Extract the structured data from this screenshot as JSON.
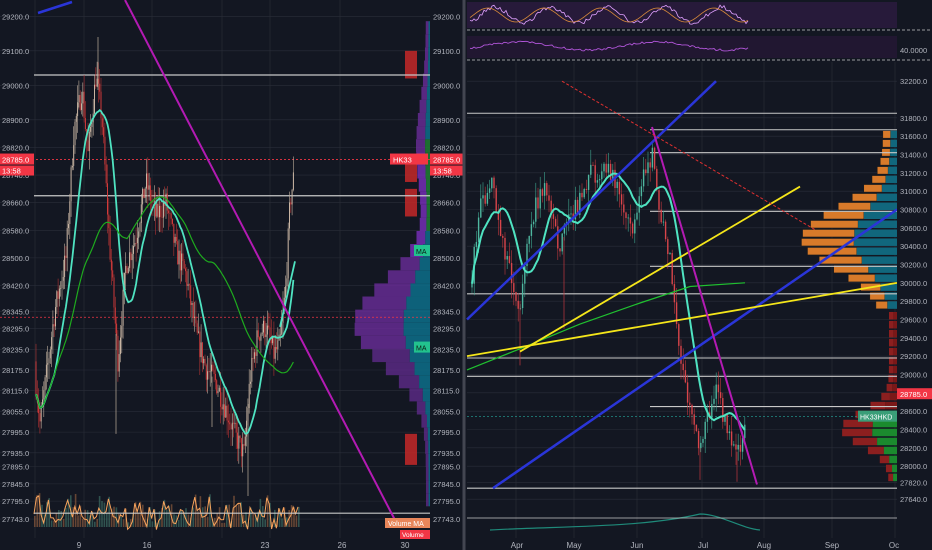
{
  "theme": {
    "background": "#131722",
    "grid": "#2a2e39",
    "axis_text": "#b2b5be",
    "up": "#26a69a",
    "down": "#ef5350",
    "price_label_bg": "#f23645"
  },
  "chart_data": [
    {
      "type": "candlestick",
      "panel": "left",
      "y_axis_labels": [
        "29200.0",
        "29100.0",
        "29000.0",
        "28900.0",
        "28820.0",
        "28740.0",
        "28660.0",
        "28580.0",
        "28500.0",
        "28420.0",
        "28345.0",
        "28295.0",
        "28235.0",
        "28175.0",
        "28115.0",
        "28055.0",
        "27995.0",
        "27935.0",
        "27895.0",
        "27845.0",
        "27795.0",
        "27743.0"
      ],
      "x_axis_labels": [
        "9",
        "16",
        "23",
        "26",
        "30"
      ],
      "last_price": "28785.0",
      "countdown": "13:58",
      "tags": {
        "symbol": "HK33",
        "right_countdown": "13:58",
        "ma_a": "MA",
        "ma_b": "MA",
        "volume_ma": "Volume MA",
        "volume": "Volume"
      },
      "ylim": [
        27720,
        29230
      ],
      "horizontal_levels": [
        29030,
        28680,
        27760
      ],
      "price_range": [
        27810,
        29140
      ]
    },
    {
      "type": "candlestick",
      "panel": "right",
      "y_axis_labels": [
        "32200.0",
        "31800.0",
        "31600.0",
        "31400.0",
        "31200.0",
        "31000.0",
        "30800.0",
        "30600.0",
        "30400.0",
        "30200.0",
        "30000.0",
        "29800.0",
        "29600.0",
        "29400.0",
        "29200.0",
        "29000.0",
        "28800.0",
        "28600.0",
        "28400.0",
        "28200.0",
        "28000.0",
        "27820.0",
        "27640.0"
      ],
      "x_axis_labels": [
        "Apr",
        "May",
        "Jun",
        "Jul",
        "Aug",
        "Sep",
        "Oc"
      ],
      "oscillator_axis_label": "40.0000",
      "last_price": "28785.0",
      "tags": {
        "symbol_current": "HK33HKD"
      },
      "ylim": [
        27500,
        32300
      ],
      "horizontal_levels": [
        31850,
        31670,
        31420,
        30780,
        30180,
        29880,
        29180,
        28980,
        28650,
        27760
      ],
      "price_range": [
        27820,
        31720
      ]
    }
  ]
}
